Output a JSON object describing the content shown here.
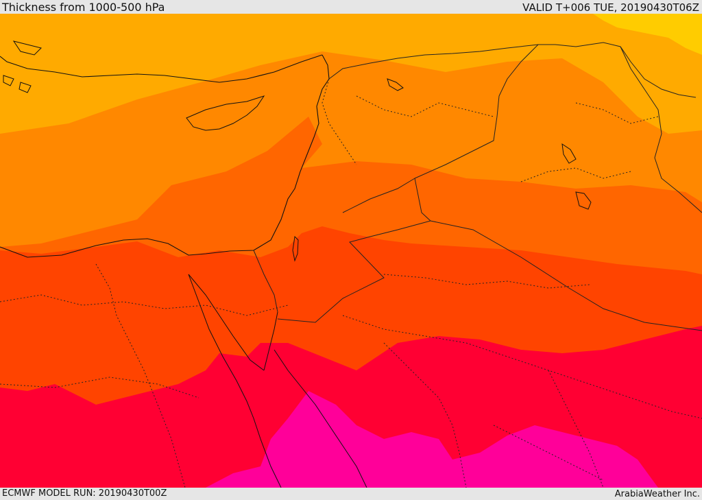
{
  "header": {
    "title": "Thickness from 1000-500 hPa",
    "valid": "VALID T+006 TUE, 20190430T06Z"
  },
  "footer": {
    "model_run": "ECMWF MODEL RUN: 20190430T00Z",
    "credit": "ArabiaWeather Inc."
  },
  "map": {
    "colors": {
      "band_1": "#ffcc00",
      "band_2": "#ffaa00",
      "band_3": "#ff8800",
      "band_4": "#ff6600",
      "band_5": "#ff4400",
      "band_6": "#ff0033",
      "band_7": "#ff0099",
      "coastline": "#111111",
      "border": "#222222"
    }
  }
}
